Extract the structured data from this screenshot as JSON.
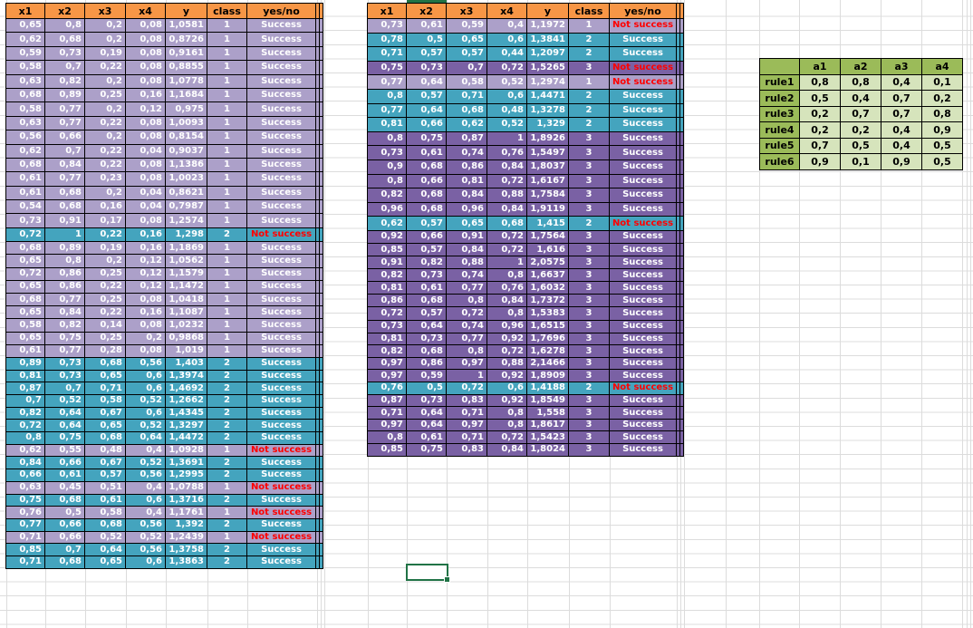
{
  "colors": {
    "header_orange": "#F79646",
    "class1_purple": "#ACA0C9",
    "class2_teal": "#44A4BE",
    "class3_purple": "#7A61A4",
    "not_success_red": "#FF0000",
    "rules_green_dark": "#9BBB59",
    "rules_green_light": "#D6E4BC",
    "selection_green": "#217346"
  },
  "labels": {
    "success": "Success",
    "not_success": "Not success"
  },
  "left_table": {
    "headers": [
      "x1",
      "x2",
      "x3",
      "x4",
      "y",
      "class",
      "yes/no"
    ],
    "rows": [
      {
        "cells": [
          "0,65",
          "0,8",
          "0,2",
          "0,08",
          "1,0581",
          "1",
          "Success"
        ],
        "style": "purple"
      },
      {
        "cells": [
          "0,62",
          "0,68",
          "0,2",
          "0,08",
          "0,8726",
          "1",
          "Success"
        ],
        "style": "purple"
      },
      {
        "cells": [
          "0,59",
          "0,73",
          "0,19",
          "0,08",
          "0,9161",
          "1",
          "Success"
        ],
        "style": "purple"
      },
      {
        "cells": [
          "0,58",
          "0,7",
          "0,22",
          "0,08",
          "0,8855",
          "1",
          "Success"
        ],
        "style": "purple"
      },
      {
        "cells": [
          "0,63",
          "0,82",
          "0,2",
          "0,08",
          "1,0778",
          "1",
          "Success"
        ],
        "style": "purple"
      },
      {
        "cells": [
          "0,68",
          "0,89",
          "0,25",
          "0,16",
          "1,1684",
          "1",
          "Success"
        ],
        "style": "purple"
      },
      {
        "cells": [
          "0,58",
          "0,77",
          "0,2",
          "0,12",
          "0,975",
          "1",
          "Success"
        ],
        "style": "purple"
      },
      {
        "cells": [
          "0,63",
          "0,77",
          "0,22",
          "0,08",
          "1,0093",
          "1",
          "Success"
        ],
        "style": "purple"
      },
      {
        "cells": [
          "0,56",
          "0,66",
          "0,2",
          "0,08",
          "0,8154",
          "1",
          "Success"
        ],
        "style": "purple"
      },
      {
        "cells": [
          "0,62",
          "0,7",
          "0,22",
          "0,04",
          "0,9037",
          "1",
          "Success"
        ],
        "style": "purple"
      },
      {
        "cells": [
          "0,68",
          "0,84",
          "0,22",
          "0,08",
          "1,1386",
          "1",
          "Success"
        ],
        "style": "purple"
      },
      {
        "cells": [
          "0,61",
          "0,77",
          "0,23",
          "0,08",
          "1,0023",
          "1",
          "Success"
        ],
        "style": "purple"
      },
      {
        "cells": [
          "0,61",
          "0,68",
          "0,2",
          "0,04",
          "0,8621",
          "1",
          "Success"
        ],
        "style": "purple"
      },
      {
        "cells": [
          "0,54",
          "0,68",
          "0,16",
          "0,04",
          "0,7987",
          "1",
          "Success"
        ],
        "style": "purple"
      },
      {
        "cells": [
          "0,73",
          "0,91",
          "0,17",
          "0,08",
          "1,2574",
          "1",
          "Success"
        ],
        "style": "purple"
      },
      {
        "cells": [
          "0,72",
          "1",
          "0,22",
          "0,16",
          "1,298",
          "2",
          "Not success"
        ],
        "style": "teal"
      },
      {
        "cells": [
          "0,68",
          "0,89",
          "0,19",
          "0,16",
          "1,1869",
          "1",
          "Success"
        ],
        "style": "purple"
      },
      {
        "cells": [
          "0,65",
          "0,8",
          "0,2",
          "0,12",
          "1,0562",
          "1",
          "Success"
        ],
        "style": "purple"
      },
      {
        "cells": [
          "0,72",
          "0,86",
          "0,25",
          "0,12",
          "1,1579",
          "1",
          "Success"
        ],
        "style": "purple"
      },
      {
        "cells": [
          "0,65",
          "0,86",
          "0,22",
          "0,12",
          "1,1472",
          "1",
          "Success"
        ],
        "style": "purple"
      },
      {
        "cells": [
          "0,68",
          "0,77",
          "0,25",
          "0,08",
          "1,0418",
          "1",
          "Success"
        ],
        "style": "purple"
      },
      {
        "cells": [
          "0,65",
          "0,84",
          "0,22",
          "0,16",
          "1,1087",
          "1",
          "Success"
        ],
        "style": "purple"
      },
      {
        "cells": [
          "0,58",
          "0,82",
          "0,14",
          "0,08",
          "1,0232",
          "1",
          "Success"
        ],
        "style": "purple"
      },
      {
        "cells": [
          "0,65",
          "0,75",
          "0,25",
          "0,2",
          "0,9868",
          "1",
          "Success"
        ],
        "style": "purple"
      },
      {
        "cells": [
          "0,61",
          "0,77",
          "0,28",
          "0,08",
          "1,019",
          "1",
          "Success"
        ],
        "style": "purple"
      },
      {
        "cells": [
          "0,89",
          "0,73",
          "0,68",
          "0,56",
          "1,403",
          "2",
          "Success"
        ],
        "style": "teal"
      },
      {
        "cells": [
          "0,81",
          "0,73",
          "0,65",
          "0,6",
          "1,3974",
          "2",
          "Success"
        ],
        "style": "teal"
      },
      {
        "cells": [
          "0,87",
          "0,7",
          "0,71",
          "0,6",
          "1,4692",
          "2",
          "Success"
        ],
        "style": "teal"
      },
      {
        "cells": [
          "0,7",
          "0,52",
          "0,58",
          "0,52",
          "1,2662",
          "2",
          "Success"
        ],
        "style": "teal"
      },
      {
        "cells": [
          "0,82",
          "0,64",
          "0,67",
          "0,6",
          "1,4345",
          "2",
          "Success"
        ],
        "style": "teal"
      },
      {
        "cells": [
          "0,72",
          "0,64",
          "0,65",
          "0,52",
          "1,3297",
          "2",
          "Success"
        ],
        "style": "teal"
      },
      {
        "cells": [
          "0,8",
          "0,75",
          "0,68",
          "0,64",
          "1,4472",
          "2",
          "Success"
        ],
        "style": "teal"
      },
      {
        "cells": [
          "0,62",
          "0,55",
          "0,48",
          "0,4",
          "1,0928",
          "1",
          "Not success"
        ],
        "style": "purple"
      },
      {
        "cells": [
          "0,84",
          "0,66",
          "0,67",
          "0,52",
          "1,3691",
          "2",
          "Success"
        ],
        "style": "teal"
      },
      {
        "cells": [
          "0,66",
          "0,61",
          "0,57",
          "0,56",
          "1,2995",
          "2",
          "Success"
        ],
        "style": "teal"
      },
      {
        "cells": [
          "0,63",
          "0,45",
          "0,51",
          "0,4",
          "1,0788",
          "1",
          "Not success"
        ],
        "style": "purple"
      },
      {
        "cells": [
          "0,75",
          "0,68",
          "0,61",
          "0,6",
          "1,3716",
          "2",
          "Success"
        ],
        "style": "teal"
      },
      {
        "cells": [
          "0,76",
          "0,5",
          "0,58",
          "0,4",
          "1,1761",
          "1",
          "Not success"
        ],
        "style": "purple"
      },
      {
        "cells": [
          "0,77",
          "0,66",
          "0,68",
          "0,56",
          "1,392",
          "2",
          "Success"
        ],
        "style": "teal"
      },
      {
        "cells": [
          "0,71",
          "0,66",
          "0,52",
          "0,52",
          "1,2439",
          "1",
          "Not success"
        ],
        "style": "purple"
      },
      {
        "cells": [
          "0,85",
          "0,7",
          "0,64",
          "0,56",
          "1,3758",
          "2",
          "Success"
        ],
        "style": "teal"
      },
      {
        "cells": [
          "0,71",
          "0,68",
          "0,65",
          "0,6",
          "1,3863",
          "2",
          "Success"
        ],
        "style": "teal"
      }
    ]
  },
  "right_table": {
    "headers": [
      "x1",
      "x2",
      "x3",
      "x4",
      "y",
      "class",
      "yes/no"
    ],
    "rows": [
      {
        "cells": [
          "0,73",
          "0,61",
          "0,59",
          "0,4",
          "1,1972",
          "1",
          "Not success"
        ],
        "style": "purple"
      },
      {
        "cells": [
          "0,78",
          "0,5",
          "0,65",
          "0,6",
          "1,3841",
          "2",
          "Success"
        ],
        "style": "teal"
      },
      {
        "cells": [
          "0,71",
          "0,57",
          "0,57",
          "0,44",
          "1,2097",
          "2",
          "Success"
        ],
        "style": "teal"
      },
      {
        "cells": [
          "0,75",
          "0,73",
          "0,7",
          "0,72",
          "1,5265",
          "3",
          "Not success"
        ],
        "style": "dkpurple"
      },
      {
        "cells": [
          "0,77",
          "0,64",
          "0,58",
          "0,52",
          "1,2974",
          "1",
          "Not success"
        ],
        "style": "purple"
      },
      {
        "cells": [
          "0,8",
          "0,57",
          "0,71",
          "0,6",
          "1,4471",
          "2",
          "Success"
        ],
        "style": "teal"
      },
      {
        "cells": [
          "0,77",
          "0,64",
          "0,68",
          "0,48",
          "1,3278",
          "2",
          "Success"
        ],
        "style": "teal"
      },
      {
        "cells": [
          "0,81",
          "0,66",
          "0,62",
          "0,52",
          "1,329",
          "2",
          "Success"
        ],
        "style": "teal"
      },
      {
        "cells": [
          "0,8",
          "0,75",
          "0,87",
          "1",
          "1,8926",
          "3",
          "Success"
        ],
        "style": "dkpurple"
      },
      {
        "cells": [
          "0,73",
          "0,61",
          "0,74",
          "0,76",
          "1,5497",
          "3",
          "Success"
        ],
        "style": "dkpurple"
      },
      {
        "cells": [
          "0,9",
          "0,68",
          "0,86",
          "0,84",
          "1,8037",
          "3",
          "Success"
        ],
        "style": "dkpurple"
      },
      {
        "cells": [
          "0,8",
          "0,66",
          "0,81",
          "0,72",
          "1,6167",
          "3",
          "Success"
        ],
        "style": "dkpurple"
      },
      {
        "cells": [
          "0,82",
          "0,68",
          "0,84",
          "0,88",
          "1,7584",
          "3",
          "Success"
        ],
        "style": "dkpurple"
      },
      {
        "cells": [
          "0,96",
          "0,68",
          "0,96",
          "0,84",
          "1,9119",
          "3",
          "Success"
        ],
        "style": "dkpurple"
      },
      {
        "cells": [
          "0,62",
          "0,57",
          "0,65",
          "0,68",
          "1,415",
          "2",
          "Not success"
        ],
        "style": "teal"
      },
      {
        "cells": [
          "0,92",
          "0,66",
          "0,91",
          "0,72",
          "1,7564",
          "3",
          "Success"
        ],
        "style": "dkpurple"
      },
      {
        "cells": [
          "0,85",
          "0,57",
          "0,84",
          "0,72",
          "1,616",
          "3",
          "Success"
        ],
        "style": "dkpurple"
      },
      {
        "cells": [
          "0,91",
          "0,82",
          "0,88",
          "1",
          "2,0575",
          "3",
          "Success"
        ],
        "style": "dkpurple"
      },
      {
        "cells": [
          "0,82",
          "0,73",
          "0,74",
          "0,8",
          "1,6637",
          "3",
          "Success"
        ],
        "style": "dkpurple"
      },
      {
        "cells": [
          "0,81",
          "0,61",
          "0,77",
          "0,76",
          "1,6032",
          "3",
          "Success"
        ],
        "style": "dkpurple"
      },
      {
        "cells": [
          "0,86",
          "0,68",
          "0,8",
          "0,84",
          "1,7372",
          "3",
          "Success"
        ],
        "style": "dkpurple"
      },
      {
        "cells": [
          "0,72",
          "0,57",
          "0,72",
          "0,8",
          "1,5383",
          "3",
          "Success"
        ],
        "style": "dkpurple"
      },
      {
        "cells": [
          "0,73",
          "0,64",
          "0,74",
          "0,96",
          "1,6515",
          "3",
          "Success"
        ],
        "style": "dkpurple"
      },
      {
        "cells": [
          "0,81",
          "0,73",
          "0,77",
          "0,92",
          "1,7696",
          "3",
          "Success"
        ],
        "style": "dkpurple"
      },
      {
        "cells": [
          "0,82",
          "0,68",
          "0,8",
          "0,72",
          "1,6278",
          "3",
          "Success"
        ],
        "style": "dkpurple"
      },
      {
        "cells": [
          "0,97",
          "0,86",
          "0,97",
          "0,88",
          "2,1466",
          "3",
          "Success"
        ],
        "style": "dkpurple"
      },
      {
        "cells": [
          "0,97",
          "0,59",
          "1",
          "0,92",
          "1,8909",
          "3",
          "Success"
        ],
        "style": "dkpurple"
      },
      {
        "cells": [
          "0,76",
          "0,5",
          "0,72",
          "0,6",
          "1,4188",
          "2",
          "Not success"
        ],
        "style": "teal"
      },
      {
        "cells": [
          "0,87",
          "0,73",
          "0,83",
          "0,92",
          "1,8549",
          "3",
          "Success"
        ],
        "style": "dkpurple"
      },
      {
        "cells": [
          "0,71",
          "0,64",
          "0,71",
          "0,8",
          "1,558",
          "3",
          "Success"
        ],
        "style": "dkpurple"
      },
      {
        "cells": [
          "0,97",
          "0,64",
          "0,97",
          "0,8",
          "1,8617",
          "3",
          "Success"
        ],
        "style": "dkpurple"
      },
      {
        "cells": [
          "0,8",
          "0,61",
          "0,71",
          "0,72",
          "1,5423",
          "3",
          "Success"
        ],
        "style": "dkpurple"
      },
      {
        "cells": [
          "0,85",
          "0,75",
          "0,83",
          "0,84",
          "1,8024",
          "3",
          "Success"
        ],
        "style": "dkpurple"
      }
    ]
  },
  "rules_table": {
    "corner_label": "",
    "col_headers": [
      "a1",
      "a2",
      "a3",
      "a4"
    ],
    "rows": [
      {
        "label": "rule1",
        "values": [
          "0,8",
          "0,8",
          "0,4",
          "0,1"
        ]
      },
      {
        "label": "rule2",
        "values": [
          "0,5",
          "0,4",
          "0,7",
          "0,2"
        ]
      },
      {
        "label": "rule3",
        "values": [
          "0,2",
          "0,7",
          "0,7",
          "0,8"
        ]
      },
      {
        "label": "rule4",
        "values": [
          "0,2",
          "0,2",
          "0,4",
          "0,9"
        ]
      },
      {
        "label": "rule5",
        "values": [
          "0,7",
          "0,5",
          "0,4",
          "0,5"
        ]
      },
      {
        "label": "rule6",
        "values": [
          "0,9",
          "0,1",
          "0,9",
          "0,5"
        ]
      }
    ]
  }
}
